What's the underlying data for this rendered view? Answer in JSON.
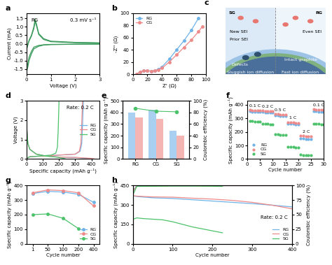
{
  "chart_data": [
    {
      "panel_label": "a",
      "type": "line",
      "x_label": "Voltage (V)",
      "y_label": "Current (mA)",
      "annotations": [
        "RG",
        "0.3 mV s⁻¹"
      ],
      "xlim": [
        0,
        3
      ],
      "xticks": [
        0,
        1,
        2,
        3
      ],
      "ylim": [
        -1.8,
        1.8
      ],
      "yticks": [
        -1.5,
        -1.0,
        -0.5,
        0.0,
        0.5,
        1.0,
        1.5
      ],
      "series": [
        {
          "color": "#3a9a5c",
          "x": [
            3.0,
            2.0,
            1.0,
            0.7,
            0.5,
            0.3,
            0.2,
            0.1,
            0.05,
            0.01,
            0.01,
            0.1,
            0.2,
            0.3,
            0.35,
            0.4,
            0.5,
            0.7,
            1.0,
            2.0,
            3.0
          ],
          "values": [
            -0.02,
            -0.03,
            -0.05,
            -0.08,
            -0.15,
            -0.3,
            -0.6,
            -1.0,
            -1.4,
            -1.6,
            -0.3,
            0.2,
            0.5,
            1.0,
            1.45,
            1.2,
            0.6,
            0.3,
            0.15,
            0.08,
            0.05
          ]
        },
        {
          "color": "#3a9a5c",
          "x": [
            3.0,
            2.0,
            1.0,
            0.7,
            0.5,
            0.3,
            0.2,
            0.1,
            0.05,
            0.01,
            0.01,
            0.1,
            0.2,
            0.3,
            0.35,
            0.4,
            0.5,
            0.7,
            1.0,
            2.0,
            3.0
          ],
          "values": [
            -0.02,
            -0.03,
            -0.04,
            -0.06,
            -0.1,
            -0.2,
            -0.45,
            -0.8,
            -1.2,
            -1.45,
            -0.25,
            0.15,
            0.45,
            0.9,
            1.3,
            1.1,
            0.55,
            0.25,
            0.12,
            0.06,
            0.04
          ]
        }
      ]
    },
    {
      "panel_label": "b",
      "type": "line",
      "x_label": "Z' (Ω)",
      "y_label": "-Z'' (Ω)",
      "legend": "upper left",
      "xlim": [
        0,
        100
      ],
      "xticks": [
        0,
        20,
        40,
        60,
        80,
        100
      ],
      "ylim": [
        0,
        100
      ],
      "yticks": [
        0,
        20,
        40,
        60,
        80,
        100
      ],
      "series": [
        {
          "name": "RG",
          "color": "#6fb3e8",
          "marker": "o",
          "x": [
            5,
            10,
            15,
            20,
            25,
            30,
            35,
            40,
            50,
            60,
            70,
            80,
            90
          ],
          "values": [
            0,
            4,
            6,
            6,
            5,
            6,
            8,
            12,
            25,
            40,
            55,
            72,
            92
          ]
        },
        {
          "name": "CG",
          "color": "#ee8a8a",
          "marker": "o",
          "x": [
            5,
            10,
            15,
            20,
            25,
            30,
            35,
            40,
            50,
            60,
            70,
            80,
            90,
            95
          ],
          "values": [
            0,
            4,
            6,
            6,
            5,
            6,
            7,
            10,
            20,
            32,
            44,
            56,
            70,
            78
          ]
        }
      ]
    },
    {
      "panel_label": "c",
      "type": "diagram",
      "annotations": [
        "SG",
        "RG",
        "New SEI",
        "Prior SEI",
        "Defects",
        "Sluggish ion diffusion",
        "Even SEI",
        "Intact graphite",
        "Fast ion diffusion"
      ]
    },
    {
      "panel_label": "d",
      "type": "line",
      "x_label": "Specific capacity (mAh g⁻¹)",
      "y_label": "Voltage (V)",
      "annotations": [
        "Rate: 0.2 C"
      ],
      "legend": "center right",
      "xlim": [
        0,
        450
      ],
      "xticks": [
        0,
        100,
        200,
        300,
        400
      ],
      "ylim": [
        0,
        3
      ],
      "yticks": [
        0,
        1,
        2,
        3
      ],
      "series": [
        {
          "name": "RG",
          "color": "#6fb3e8",
          "x": [
            0,
            2,
            8,
            20,
            60,
            120,
            200,
            300,
            380,
            400,
            null,
            0,
            20,
            100,
            200,
            300,
            330,
            340,
            345,
            350
          ],
          "values": [
            3.0,
            1.5,
            0.8,
            0.5,
            0.25,
            0.15,
            0.1,
            0.08,
            0.03,
            0.0,
            null,
            0.02,
            0.12,
            0.15,
            0.2,
            0.25,
            0.4,
            0.8,
            1.8,
            3.0
          ]
        },
        {
          "name": "CG",
          "color": "#ee8a8a",
          "x": [
            0,
            2,
            8,
            20,
            60,
            120,
            200,
            300,
            400,
            420,
            null,
            0,
            20,
            100,
            200,
            300,
            325,
            335,
            340,
            345
          ],
          "values": [
            3.0,
            1.5,
            0.8,
            0.5,
            0.25,
            0.15,
            0.1,
            0.08,
            0.03,
            0.0,
            null,
            0.02,
            0.12,
            0.15,
            0.2,
            0.25,
            0.4,
            0.8,
            1.8,
            3.0
          ]
        },
        {
          "name": "SG",
          "color": "#4cc26b",
          "x": [
            0,
            2,
            8,
            20,
            60,
            120,
            180,
            230,
            240,
            null,
            0,
            20,
            80,
            150,
            180,
            190,
            195,
            200
          ],
          "values": [
            3.0,
            1.5,
            0.8,
            0.5,
            0.25,
            0.15,
            0.1,
            0.03,
            0.0,
            null,
            0.02,
            0.12,
            0.15,
            0.2,
            0.3,
            0.6,
            1.5,
            3.0
          ]
        }
      ]
    },
    {
      "panel_label": "e",
      "type": "bar",
      "y_label": "Specific capacity (mAh g⁻¹)",
      "y2_label": "Coulombic efficiency (%)",
      "categories": [
        "RG",
        "CG",
        "SG"
      ],
      "ylim": [
        0,
        500
      ],
      "yticks": [
        0,
        100,
        200,
        300,
        400,
        500
      ],
      "y2lim": [
        0,
        100
      ],
      "y2ticks": [
        0,
        20,
        40,
        60,
        80,
        100
      ],
      "series": [
        {
          "color": "#a9d0f0",
          "values": [
            400,
            420,
            240
          ]
        },
        {
          "color": "#f5b5b2",
          "values": [
            355,
            345,
            200
          ]
        },
        {
          "type": "line",
          "axis": "y2",
          "marker": "o",
          "color": "#4cc26b",
          "values": [
            87,
            82,
            81
          ]
        }
      ]
    },
    {
      "panel_label": "f",
      "type": "scatter",
      "x_label": "Cycle number",
      "y_label": "Specific capacity (mAh g⁻¹)",
      "annotations": [
        "0.1 C",
        "0.2 C",
        "0.5 C",
        "1 C",
        "2 C",
        "0.1 C"
      ],
      "legend": "lower left",
      "xlim": [
        0,
        30
      ],
      "xticks": [
        0,
        5,
        10,
        15,
        20,
        25,
        30
      ],
      "ylim": [
        0,
        430
      ],
      "yticks": [
        0,
        100,
        200,
        300,
        400
      ],
      "x": [
        1,
        2,
        3,
        4,
        5,
        6,
        7,
        8,
        9,
        10,
        11,
        12,
        13,
        14,
        15,
        16,
        17,
        18,
        19,
        20,
        21,
        22,
        23,
        24,
        25,
        26,
        27,
        28,
        29,
        30
      ],
      "series": [
        {
          "name": "RG",
          "color": "#6fb3e8",
          "marker": "o",
          "values": [
            352,
            350,
            349,
            348,
            348,
            346,
            345,
            345,
            344,
            344,
            322,
            320,
            319,
            318,
            318,
            262,
            260,
            258,
            257,
            256,
            152,
            150,
            148,
            147,
            146,
            352,
            351,
            350,
            350,
            349
          ]
        },
        {
          "name": "CG",
          "color": "#ee8a8a",
          "marker": "o",
          "values": [
            362,
            360,
            359,
            358,
            358,
            356,
            355,
            354,
            354,
            353,
            332,
            330,
            329,
            328,
            328,
            272,
            270,
            268,
            267,
            266,
            172,
            170,
            168,
            167,
            166,
            366,
            365,
            364,
            364,
            363
          ]
        },
        {
          "name": "SG",
          "color": "#4cc26b",
          "marker": "o",
          "values": [
            282,
            278,
            276,
            275,
            274,
            262,
            260,
            258,
            257,
            256,
            182,
            180,
            178,
            176,
            175,
            92,
            90,
            88,
            87,
            86,
            32,
            30,
            29,
            28,
            28,
            262,
            260,
            258,
            257,
            256
          ]
        }
      ]
    },
    {
      "panel_label": "g",
      "type": "line",
      "x_label": "Cycle number",
      "y_label": "Specific capacity (mAh g⁻¹)",
      "legend": "lower right",
      "categories": [
        "1",
        "50",
        "100",
        "200",
        "400"
      ],
      "ylim": [
        0,
        400
      ],
      "yticks": [
        0,
        100,
        200,
        300,
        400
      ],
      "series": [
        {
          "name": "RG",
          "color": "#6fb3e8",
          "marker": "o",
          "values": [
            345,
            360,
            355,
            340,
            285
          ]
        },
        {
          "name": "CG",
          "color": "#ee8a8a",
          "marker": "o",
          "values": [
            350,
            370,
            365,
            350,
            260
          ]
        },
        {
          "name": "SG",
          "color": "#4cc26b",
          "marker": "o",
          "values": [
            200,
            205,
            175,
            105,
            null
          ]
        }
      ]
    },
    {
      "panel_label": "h",
      "type": "line",
      "x_label": "Cycle number",
      "y_label": "Specific capacity (mAh g⁻¹)",
      "y2_label": "Coulombic efficiency (%)",
      "annotations": [
        "Rate: 0.2 C"
      ],
      "legend": "lower right",
      "xlim": [
        0,
        400
      ],
      "xticks": [
        0,
        100,
        200,
        300,
        400
      ],
      "ylim": [
        0,
        450
      ],
      "yticks": [
        0,
        150,
        300,
        450
      ],
      "y2lim": [
        0,
        100
      ],
      "y2ticks": [
        0,
        25,
        50,
        75,
        100
      ],
      "series": [
        {
          "name": "RG",
          "color": "#6fb3e8",
          "x": [
            1,
            10,
            50,
            100,
            150,
            200,
            250,
            300,
            350,
            400
          ],
          "values": [
            370,
            365,
            355,
            350,
            340,
            330,
            320,
            310,
            298,
            285
          ]
        },
        {
          "name": "CG",
          "color": "#ee8a8a",
          "x": [
            1,
            10,
            50,
            100,
            150,
            200,
            250,
            300,
            350,
            400
          ],
          "values": [
            372,
            368,
            362,
            360,
            352,
            345,
            335,
            320,
            298,
            270
          ]
        },
        {
          "name": "SG",
          "color": "#4cc26b",
          "x": [
            1,
            10,
            25,
            50,
            75,
            100,
            125,
            150,
            175,
            200,
            225
          ],
          "values": [
            190,
            200,
            195,
            190,
            185,
            170,
            150,
            130,
            115,
            100,
            85
          ]
        },
        {
          "axis": "y2",
          "color": "#6fb3e8",
          "x": [
            1,
            10,
            100,
            200,
            300,
            400
          ],
          "values": [
            92,
            99.5,
            99.7,
            99.8,
            99.8,
            99.8
          ]
        },
        {
          "axis": "y2",
          "color": "#ee8a8a",
          "x": [
            1,
            10,
            100,
            200,
            300,
            400
          ],
          "values": [
            90,
            99.3,
            99.6,
            99.7,
            99.7,
            99.7
          ]
        },
        {
          "axis": "y2",
          "color": "#4cc26b",
          "x": [
            1,
            10,
            100,
            150,
            200,
            225
          ],
          "values": [
            85,
            98.5,
            99,
            99,
            98.8,
            98.5
          ]
        }
      ]
    }
  ]
}
